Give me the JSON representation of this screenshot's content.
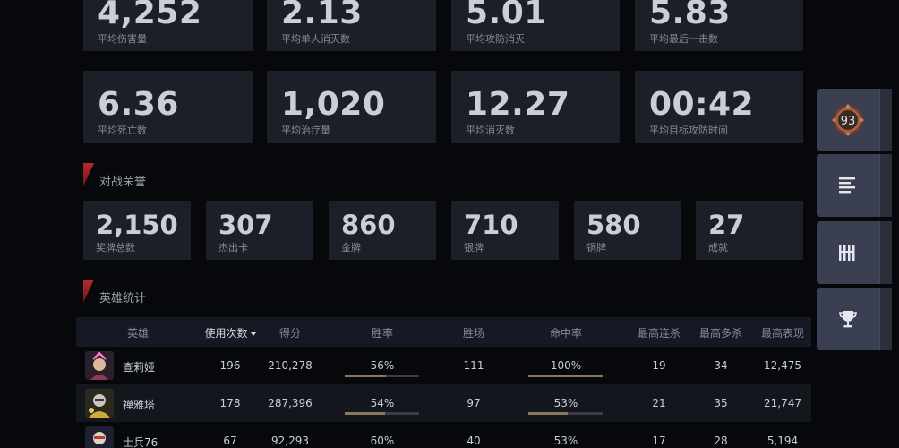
{
  "overview_stats": [
    {
      "value": "4,252",
      "label": "平均伤害量"
    },
    {
      "value": "2.13",
      "label": "平均单人消灭数"
    },
    {
      "value": "5.01",
      "label": "平均攻防消灭"
    },
    {
      "value": "5.83",
      "label": "平均最后一击数"
    },
    {
      "value": "6.36",
      "label": "平均死亡数"
    },
    {
      "value": "1,020",
      "label": "平均治疗量"
    },
    {
      "value": "12.27",
      "label": "平均消灭数"
    },
    {
      "value": "00:42",
      "label": "平均目标攻防时间"
    }
  ],
  "honors": {
    "title": "对战荣誉",
    "items": [
      {
        "value": "2,150",
        "label": "奖牌总数"
      },
      {
        "value": "307",
        "label": "杰出卡"
      },
      {
        "value": "860",
        "label": "金牌"
      },
      {
        "value": "710",
        "label": "银牌"
      },
      {
        "value": "580",
        "label": "铜牌"
      },
      {
        "value": "27",
        "label": "成就"
      }
    ]
  },
  "heroes": {
    "title": "英雄统计",
    "columns": [
      "英雄",
      "使用次数",
      "得分",
      "胜率",
      "胜场",
      "命中率",
      "最高连杀",
      "最高多杀",
      "最高表现"
    ],
    "rows": [
      {
        "name": "查莉娅",
        "uses": "196",
        "score": "210,278",
        "winrate": "56%",
        "wins": "111",
        "accuracy": "100%",
        "streak": "19",
        "multi": "34",
        "best": "12,475",
        "winrate_frac": 0.56,
        "accuracy_frac": 1.0
      },
      {
        "name": "禅雅塔",
        "uses": "178",
        "score": "287,396",
        "winrate": "54%",
        "wins": "97",
        "accuracy": "53%",
        "streak": "21",
        "multi": "35",
        "best": "21,747",
        "winrate_frac": 0.54,
        "accuracy_frac": 0.53
      },
      {
        "name": "士兵76",
        "uses": "67",
        "score": "92,293",
        "winrate": "60%",
        "wins": "40",
        "accuracy": "53%",
        "streak": "17",
        "multi": "28",
        "best": "5,194",
        "winrate_frac": 0.6,
        "accuracy_frac": 0.53
      }
    ]
  },
  "sidebar": {
    "level_badge": "93",
    "icons": [
      "rank-badge-icon",
      "list-icon",
      "barcode-icon",
      "trophy-icon"
    ]
  },
  "colors": {
    "background": "#07080c",
    "card": "#1c1f28",
    "accent_red": "#b52a2f",
    "bar_fill": "#8a7a58"
  }
}
